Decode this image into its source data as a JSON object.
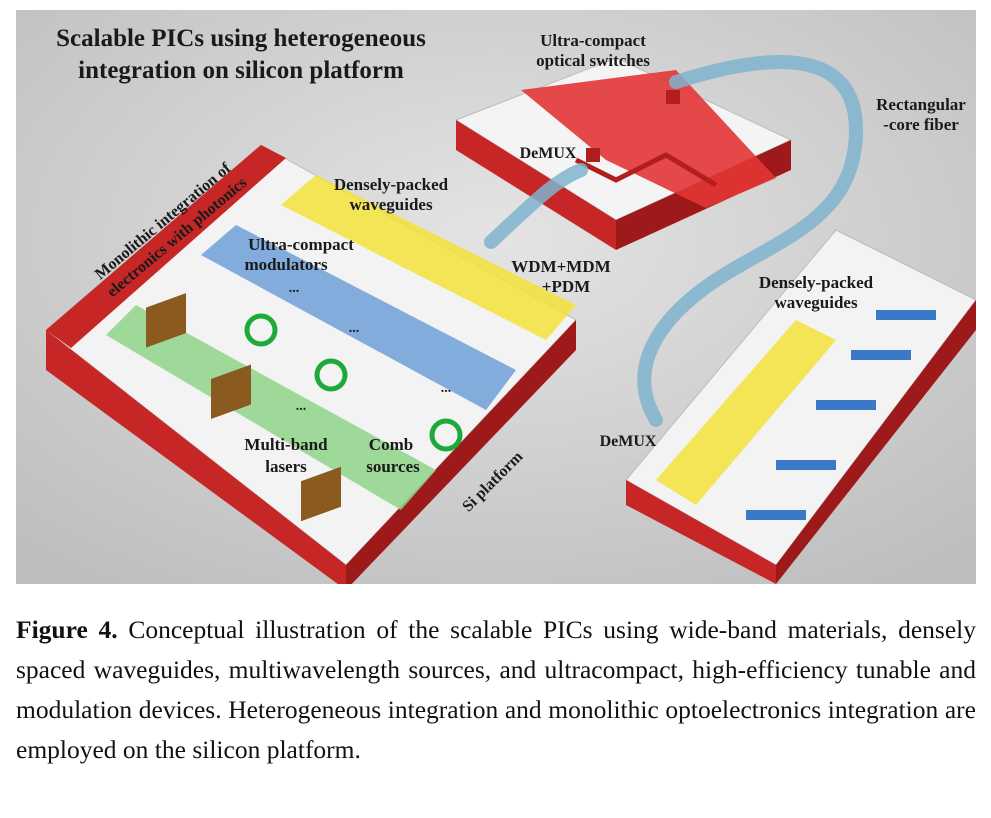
{
  "figure": {
    "title_line1": "Scalable PICs using heterogeneous",
    "title_line2": "integration on silicon platform",
    "labels": {
      "ultra_compact_switches_1": "Ultra-compact",
      "ultra_compact_switches_2": "optical switches",
      "rect_fiber_1": "Rectangular",
      "rect_fiber_2": "-core fiber",
      "demux_top": "DeMUX",
      "dense_wg_left_1": "Densely-packed",
      "dense_wg_left_2": "waveguides",
      "ultra_compact_mod_1": "Ultra-compact",
      "ultra_compact_mod_2": "modulators",
      "wdm_1": "WDM+MDM",
      "wdm_2": "+PDM",
      "monolithic_1": "Monolithic integration of",
      "monolithic_2": "electronics with photonics",
      "dense_wg_right_1": "Densely-packed",
      "dense_wg_right_2": "waveguides",
      "demux_right": "DeMUX",
      "multiband_1": "Multi-band",
      "multiband_2": "lasers",
      "comb_1": "Comb",
      "comb_2": "sources",
      "si_platform": "Si platform",
      "dots1": "...",
      "dots2": "...",
      "dots3": "...",
      "dots4": "..."
    },
    "colors": {
      "background": "#d8d8d8",
      "chip_red": "#c62626",
      "yellow": "#f2e23a",
      "blue": "#6d9fd6",
      "green": "#8fd48a",
      "fiber": "#7fb3cf"
    }
  },
  "caption": {
    "label": "Figure 4.",
    "text": " Conceptual illustration of the scalable PICs using wide-band materials, densely spaced waveguides, multiwavelength sources, and ultracompact, high-efficiency tunable and modulation devices. Heterogeneous integration and monolithic optoelectronics integration are employed on the silicon platform."
  }
}
